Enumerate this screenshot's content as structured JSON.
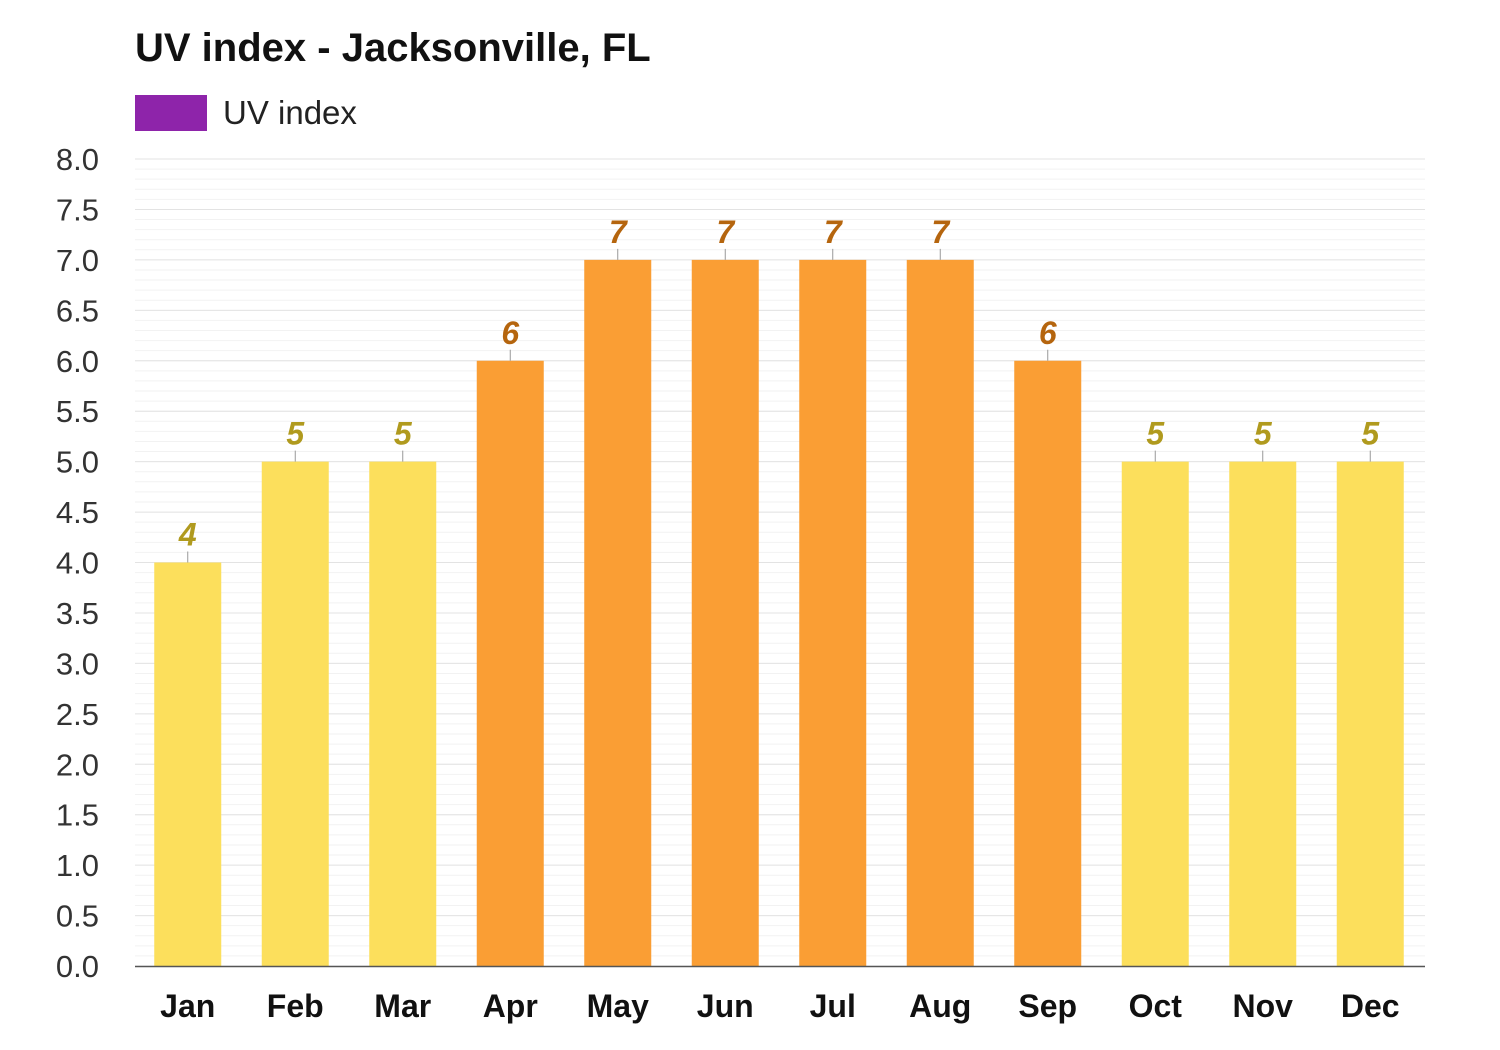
{
  "chart_data": {
    "type": "bar",
    "title": "UV index - Jacksonville, FL",
    "legend": {
      "position": "top-left",
      "entries": [
        {
          "label": "UV index",
          "color": "#8e24aa"
        }
      ]
    },
    "categories": [
      "Jan",
      "Feb",
      "Mar",
      "Apr",
      "May",
      "Jun",
      "Jul",
      "Aug",
      "Sep",
      "Oct",
      "Nov",
      "Dec"
    ],
    "series": [
      {
        "name": "UV index",
        "values": [
          4,
          5,
          5,
          6,
          7,
          7,
          7,
          7,
          6,
          5,
          5,
          5
        ],
        "data_labels": [
          "4",
          "5",
          "5",
          "6",
          "7",
          "7",
          "7",
          "7",
          "6",
          "5",
          "5",
          "5"
        ]
      }
    ],
    "xlabel": "",
    "ylabel": "",
    "ylim": [
      0,
      8
    ],
    "y_ticks": [
      "0.0",
      "0.5",
      "1.0",
      "1.5",
      "2.0",
      "2.5",
      "3.0",
      "3.5",
      "4.0",
      "4.5",
      "5.0",
      "5.5",
      "6.0",
      "6.5",
      "7.0",
      "7.5",
      "8.0"
    ],
    "grid": true,
    "colors": {
      "moderate_bar": "#fcdf5c",
      "moderate_label": "#b09a1e",
      "high_bar": "#fa9e34",
      "high_label": "#b5650e",
      "gridline": "#e3e3e3",
      "axis": "#555555"
    }
  }
}
